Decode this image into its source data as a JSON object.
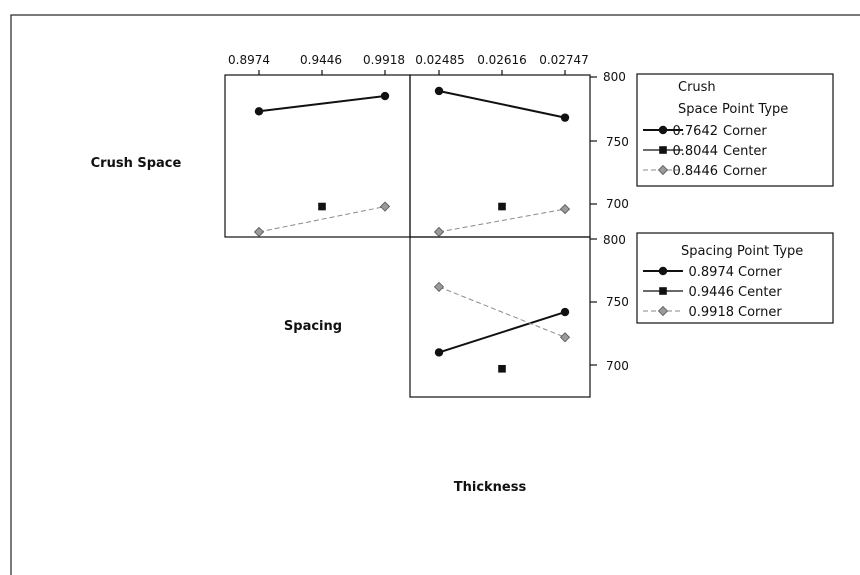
{
  "chart_data": {
    "type": "interaction-plot-matrix",
    "row_labels": [
      "Crush Space",
      "Spacing",
      "Thickness"
    ],
    "y_ticks": [
      700,
      750,
      800
    ],
    "panels": [
      {
        "id": "crush-space-by-spacing",
        "row_factor": "Crush Space",
        "x_factor": "Spacing",
        "x_ticks": [
          "0.8974",
          "0.9446",
          "0.9918"
        ],
        "x_values": [
          0.8974,
          0.9446,
          0.9918
        ],
        "series": [
          {
            "group": "0.7642",
            "style": "corner-high",
            "points": [
              [
                0.8974,
                773
              ],
              [
                0.9918,
                785
              ]
            ]
          },
          {
            "group": "0.8044",
            "style": "center",
            "points": [
              [
                0.9446,
                698
              ]
            ]
          },
          {
            "group": "0.8446",
            "style": "corner-low",
            "points": [
              [
                0.8974,
                678
              ],
              [
                0.9918,
                698
              ]
            ]
          }
        ]
      },
      {
        "id": "crush-space-by-thickness",
        "row_factor": "Crush Space",
        "x_factor": "Thickness",
        "x_ticks": [
          "0.02485",
          "0.02616",
          "0.02747"
        ],
        "x_values": [
          0.02485,
          0.02616,
          0.02747
        ],
        "series": [
          {
            "group": "0.7642",
            "style": "corner-high",
            "points": [
              [
                0.02485,
                789
              ],
              [
                0.02747,
                768
              ]
            ]
          },
          {
            "group": "0.8044",
            "style": "center",
            "points": [
              [
                0.02616,
                698
              ]
            ]
          },
          {
            "group": "0.8446",
            "style": "corner-low",
            "points": [
              [
                0.02485,
                678
              ],
              [
                0.02747,
                696
              ]
            ]
          }
        ]
      },
      {
        "id": "spacing-by-thickness",
        "row_factor": "Spacing",
        "x_factor": "Thickness",
        "x_ticks": [
          "0.02485",
          "0.02616",
          "0.02747"
        ],
        "x_values": [
          0.02485,
          0.02616,
          0.02747
        ],
        "series": [
          {
            "group": "0.8974",
            "style": "corner-high",
            "points": [
              [
                0.02485,
                710
              ],
              [
                0.02747,
                742
              ]
            ]
          },
          {
            "group": "0.9446",
            "style": "center",
            "points": [
              [
                0.02616,
                697
              ]
            ]
          },
          {
            "group": "0.9918",
            "style": "corner-low",
            "points": [
              [
                0.02485,
                762
              ],
              [
                0.02747,
                722
              ]
            ]
          }
        ]
      }
    ],
    "legends": [
      {
        "title_line1": "Crush",
        "title_factor": "Space",
        "title_type": "Point Type",
        "entries": [
          {
            "value": "0.7642",
            "type": "Corner",
            "style": "corner-high"
          },
          {
            "value": "0.8044",
            "type": "Center",
            "style": "center"
          },
          {
            "value": "0.8446",
            "type": "Corner",
            "style": "corner-low"
          }
        ]
      },
      {
        "title_line1": "",
        "title_factor": "Spacing",
        "title_type": "Point Type",
        "entries": [
          {
            "value": "0.8974",
            "type": "Corner",
            "style": "corner-high"
          },
          {
            "value": "0.9446",
            "type": "Center",
            "style": "center"
          },
          {
            "value": "0.9918",
            "type": "Corner",
            "style": "corner-low"
          }
        ]
      }
    ],
    "colors": {
      "dark": "#111111",
      "gray": "#8a8a8a"
    }
  }
}
